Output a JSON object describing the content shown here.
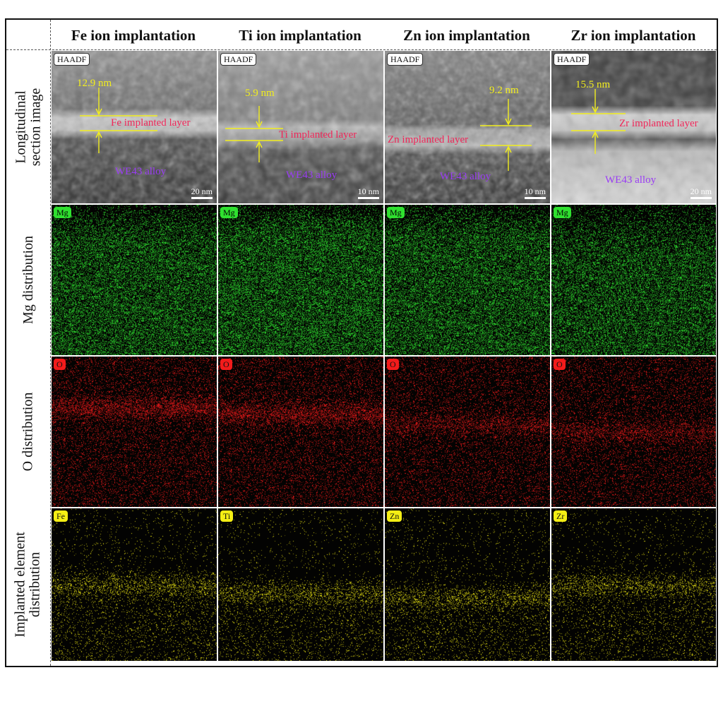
{
  "columns": [
    {
      "label": "Fe ion implantation"
    },
    {
      "label": "Ti ion implantation"
    },
    {
      "label": "Zn ion implantation"
    },
    {
      "label": "Zr ion implantation"
    }
  ],
  "rows": [
    {
      "label_line1": "Longitudinal",
      "label_line2": "section image"
    },
    {
      "label_line1": "Mg distribution",
      "label_line2": ""
    },
    {
      "label_line1": "O distribution",
      "label_line2": ""
    },
    {
      "label_line1": "Implanted element",
      "label_line2": "distribution"
    }
  ],
  "haadf_panels": [
    {
      "tag": "HAADF",
      "thickness": "12.9 nm",
      "layer_label": "Fe implanted layer",
      "substrate": "WE43 alloy",
      "scale": "20 nm"
    },
    {
      "tag": "HAADF",
      "thickness": "5.9 nm",
      "layer_label": "Ti implanted layer",
      "substrate": "WE43 alloy",
      "scale": "10 nm"
    },
    {
      "tag": "HAADF",
      "thickness": "9.2 nm",
      "layer_label": "Zn implanted layer",
      "substrate": "WE43 alloy",
      "scale": "10 nm"
    },
    {
      "tag": "HAADF",
      "thickness": "15.5 nm",
      "layer_label": "Zr implanted layer",
      "substrate": "WE43 alloy",
      "scale": "20 nm"
    }
  ],
  "map_tags": {
    "mg": [
      "Mg",
      "Mg",
      "Mg",
      "Mg"
    ],
    "o": [
      "O",
      "O",
      "O",
      "O"
    ],
    "implanted": [
      "Fe",
      "Ti",
      "Zn",
      "Zr"
    ]
  },
  "colors": {
    "annotation": "#f2ee1e",
    "layer_label": "#f0285a",
    "substrate_label": "#9a3cf5",
    "mg": "#2fe02f",
    "o": "#f21b1b",
    "implanted": "#f4ee14"
  }
}
